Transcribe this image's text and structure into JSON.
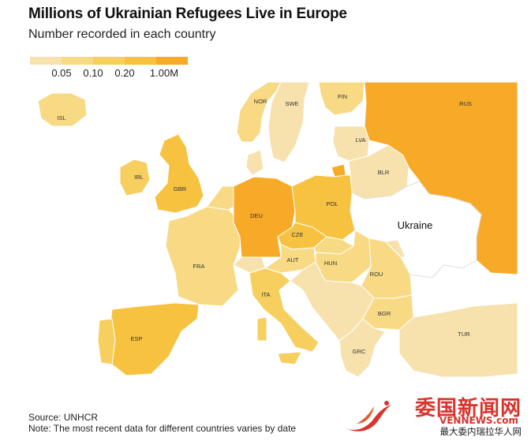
{
  "title": "Millions of Ukrainian Refugees Live in Europe",
  "subtitle": "Number recorded in each country",
  "legend": {
    "colors": [
      "#f7e2ae",
      "#f8da85",
      "#f7cf5f",
      "#f6c240",
      "#f7aa28"
    ],
    "ticks": [
      "0.05",
      "0.10",
      "0.20",
      "1.00M"
    ]
  },
  "map": {
    "focus_country": "Ukraine",
    "countries": [
      {
        "code": "ISL",
        "class": 2
      },
      {
        "code": "NOR",
        "class": 2
      },
      {
        "code": "SWE",
        "class": 1
      },
      {
        "code": "FIN",
        "class": 2
      },
      {
        "code": "RUS",
        "class": 5
      },
      {
        "code": "LVA",
        "class": 1
      },
      {
        "code": "BLR",
        "class": 1
      },
      {
        "code": "IRL",
        "class": 3
      },
      {
        "code": "GBR",
        "class": 4
      },
      {
        "code": "DEU",
        "class": 5
      },
      {
        "code": "POL",
        "class": 4
      },
      {
        "code": "CZE",
        "class": 4
      },
      {
        "code": "AUT",
        "class": 2
      },
      {
        "code": "HUN",
        "class": 2
      },
      {
        "code": "ROU",
        "class": 2
      },
      {
        "code": "FRA",
        "class": 2
      },
      {
        "code": "ITA",
        "class": 3
      },
      {
        "code": "ESP",
        "class": 4
      },
      {
        "code": "BGR",
        "class": 2
      },
      {
        "code": "GRC",
        "class": 1
      },
      {
        "code": "TUR",
        "class": 1
      }
    ]
  },
  "footer": {
    "source": "Source: UNHCR",
    "note": "Note: The most recent data for different countries varies by date"
  },
  "watermark": {
    "main": "委国新闻网",
    "url": "VENNEWS.com",
    "sub": "最大委内瑞拉华人网"
  }
}
